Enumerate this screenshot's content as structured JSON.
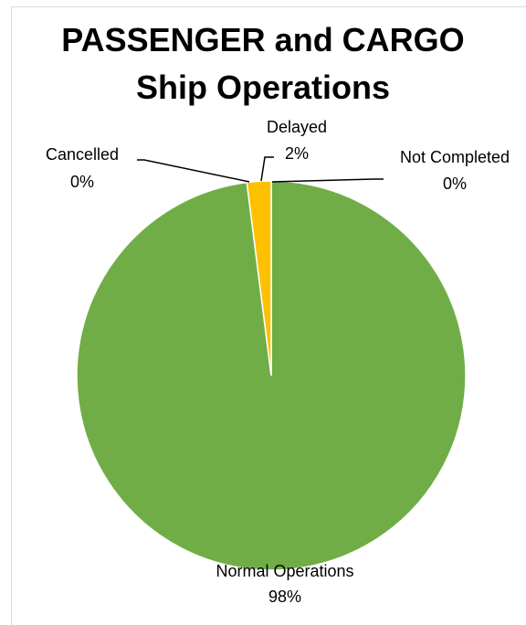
{
  "chart_data": {
    "type": "pie",
    "title_lines": [
      "PASSENGER and CARGO",
      "Ship Operations"
    ],
    "slices": [
      {
        "label": "Normal Operations",
        "value_label": "98%",
        "value": 98,
        "color": "#70ad47"
      },
      {
        "label": "Cancelled",
        "value_label": "0%",
        "value": 0,
        "color": "#5b9bd5"
      },
      {
        "label": "Delayed",
        "value_label": "2%",
        "value": 2,
        "color": "#ffc000"
      },
      {
        "label": "Not Completed",
        "value_label": "0%",
        "value": 0,
        "color": "#a5a5a5"
      }
    ],
    "legend": "none",
    "grid": false
  }
}
